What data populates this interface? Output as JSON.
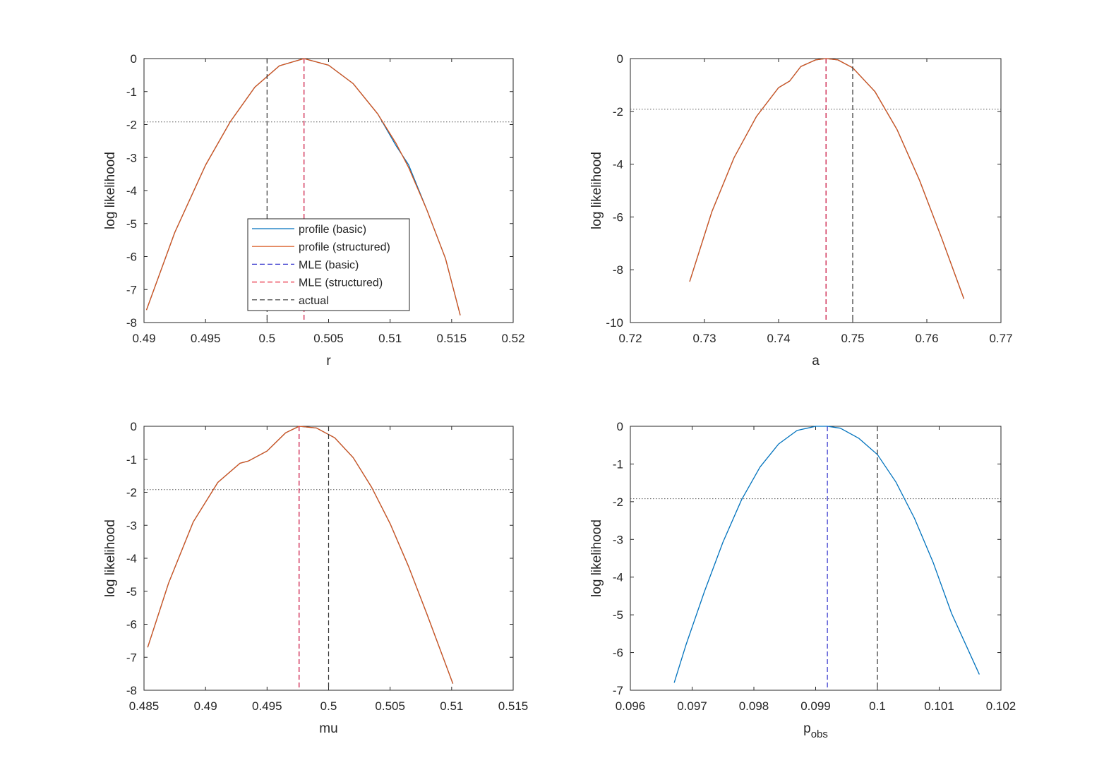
{
  "colors": {
    "basic": "#0072BD",
    "structured": "#D95319",
    "mle_basic": "#3333CC",
    "mle_structured": "#E8263C",
    "actual": "#333333",
    "threshold": "#555555",
    "axes": "#262626"
  },
  "legend": {
    "entries": [
      "profile (basic)",
      "profile (structured)",
      "MLE (basic)",
      "MLE (structured)",
      "actual"
    ]
  },
  "chart_data": [
    {
      "type": "line",
      "xlabel": "r",
      "ylabel": "log likelihood",
      "xlim": [
        0.49,
        0.52
      ],
      "ylim": [
        -8,
        0
      ],
      "xticks": [
        "0.49",
        "0.495",
        "0.5",
        "0.505",
        "0.51",
        "0.515",
        "0.52"
      ],
      "yticks": [
        "0",
        "-1",
        "-2",
        "-3",
        "-4",
        "-5",
        "-6",
        "-7",
        "-8"
      ],
      "threshold": -1.92,
      "mle_basic": 0.503,
      "mle_structured": 0.503,
      "actual": 0.5,
      "legend": true,
      "series": [
        {
          "name": "profile (basic)",
          "x": [
            0.4902,
            0.4925,
            0.495,
            0.497,
            0.499,
            0.501,
            0.503,
            0.505,
            0.507,
            0.509,
            0.5105,
            0.5115,
            0.513,
            0.5145,
            0.5157
          ],
          "y": [
            -7.62,
            -5.27,
            -3.23,
            -1.92,
            -0.87,
            -0.22,
            0.0,
            -0.2,
            -0.76,
            -1.68,
            -2.65,
            -3.22,
            -4.6,
            -6.06,
            -7.78
          ]
        },
        {
          "name": "profile (structured)",
          "x": [
            0.4902,
            0.4925,
            0.495,
            0.497,
            0.499,
            0.501,
            0.503,
            0.505,
            0.507,
            0.509,
            0.5105,
            0.5115,
            0.513,
            0.5145,
            0.5157
          ],
          "y": [
            -7.62,
            -5.27,
            -3.23,
            -1.92,
            -0.87,
            -0.22,
            0.0,
            -0.2,
            -0.76,
            -1.68,
            -2.58,
            -3.3,
            -4.6,
            -6.06,
            -7.78
          ]
        }
      ]
    },
    {
      "type": "line",
      "xlabel": "a",
      "ylabel": "log likelihood",
      "xlim": [
        0.72,
        0.77
      ],
      "ylim": [
        -10,
        0
      ],
      "xticks": [
        "0.72",
        "0.73",
        "0.74",
        "0.75",
        "0.76",
        "0.77"
      ],
      "yticks": [
        "0",
        "-2",
        "-4",
        "-6",
        "-8",
        "-10"
      ],
      "threshold": -1.92,
      "mle_basic": 0.7464,
      "mle_structured": 0.7464,
      "actual": 0.75,
      "legend": false,
      "series": [
        {
          "name": "profile (basic)",
          "x": [
            0.728,
            0.731,
            0.734,
            0.737,
            0.74,
            0.7415,
            0.743,
            0.745,
            0.7464,
            0.748,
            0.75,
            0.753,
            0.756,
            0.759,
            0.762,
            0.765
          ],
          "y": [
            -8.45,
            -5.8,
            -3.75,
            -2.2,
            -1.1,
            -0.85,
            -0.3,
            -0.05,
            0.0,
            -0.05,
            -0.35,
            -1.25,
            -2.7,
            -4.6,
            -6.8,
            -9.1
          ]
        },
        {
          "name": "profile (structured)",
          "x": [
            0.728,
            0.731,
            0.734,
            0.737,
            0.74,
            0.7415,
            0.743,
            0.745,
            0.7464,
            0.748,
            0.75,
            0.753,
            0.756,
            0.759,
            0.762,
            0.765
          ],
          "y": [
            -8.45,
            -5.8,
            -3.75,
            -2.2,
            -1.1,
            -0.85,
            -0.3,
            -0.05,
            0.0,
            -0.05,
            -0.35,
            -1.25,
            -2.7,
            -4.6,
            -6.8,
            -9.1
          ]
        }
      ]
    },
    {
      "type": "line",
      "xlabel": "mu",
      "ylabel": "log likelihood",
      "xlim": [
        0.485,
        0.515
      ],
      "ylim": [
        -8,
        0
      ],
      "xticks": [
        "0.485",
        "0.49",
        "0.495",
        "0.5",
        "0.505",
        "0.51",
        "0.515"
      ],
      "yticks": [
        "0",
        "-1",
        "-2",
        "-3",
        "-4",
        "-5",
        "-6",
        "-7",
        "-8"
      ],
      "threshold": -1.92,
      "mle_basic": 0.4976,
      "mle_structured": 0.4976,
      "actual": 0.5,
      "legend": false,
      "series": [
        {
          "name": "profile (basic)",
          "x": [
            0.4853,
            0.487,
            0.489,
            0.491,
            0.4928,
            0.4935,
            0.495,
            0.4965,
            0.4976,
            0.499,
            0.5005,
            0.502,
            0.5035,
            0.505,
            0.5065,
            0.508,
            0.5101
          ],
          "y": [
            -6.7,
            -4.75,
            -2.9,
            -1.7,
            -1.12,
            -1.05,
            -0.75,
            -0.2,
            0.0,
            -0.05,
            -0.35,
            -0.95,
            -1.85,
            -2.95,
            -4.25,
            -5.7,
            -7.8
          ]
        },
        {
          "name": "profile (structured)",
          "x": [
            0.4853,
            0.487,
            0.489,
            0.491,
            0.4928,
            0.4935,
            0.495,
            0.4965,
            0.4976,
            0.499,
            0.5005,
            0.502,
            0.5035,
            0.505,
            0.5065,
            0.508,
            0.5101
          ],
          "y": [
            -6.7,
            -4.75,
            -2.9,
            -1.7,
            -1.12,
            -1.05,
            -0.75,
            -0.2,
            0.0,
            -0.05,
            -0.35,
            -0.95,
            -1.85,
            -2.95,
            -4.25,
            -5.7,
            -7.8
          ]
        }
      ]
    },
    {
      "type": "line",
      "xlabel": "p",
      "xlabel_sub": "obs",
      "ylabel": "log likelihood",
      "xlim": [
        0.096,
        0.102
      ],
      "ylim": [
        -7,
        0
      ],
      "xticks": [
        "0.096",
        "0.097",
        "0.098",
        "0.099",
        "0.1",
        "0.101",
        "0.102"
      ],
      "yticks": [
        "0",
        "-1",
        "-2",
        "-3",
        "-4",
        "-5",
        "-6",
        "-7"
      ],
      "threshold": -1.92,
      "mle_basic": 0.09919,
      "actual": 0.1,
      "legend": false,
      "series": [
        {
          "name": "profile (basic)",
          "x": [
            0.09671,
            0.0969,
            0.0972,
            0.0975,
            0.0978,
            0.0981,
            0.0984,
            0.0987,
            0.099,
            0.09919,
            0.0994,
            0.0997,
            0.1,
            0.1003,
            0.1006,
            0.1009,
            0.1012,
            0.10165
          ],
          "y": [
            -6.8,
            -5.8,
            -4.38,
            -3.07,
            -1.95,
            -1.08,
            -0.47,
            -0.11,
            0.0,
            0.0,
            -0.05,
            -0.32,
            -0.75,
            -1.48,
            -2.44,
            -3.6,
            -4.96,
            -6.58
          ]
        }
      ]
    }
  ]
}
